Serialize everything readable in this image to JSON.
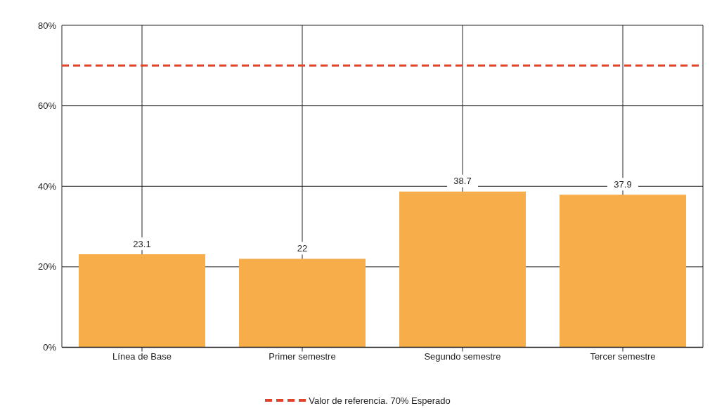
{
  "chart_data": {
    "type": "bar",
    "categories": [
      "Línea de Base",
      "Primer semestre",
      "Segundo semestre",
      "Tercer semestre"
    ],
    "values": [
      23.1,
      22,
      38.7,
      37.9
    ],
    "color": "#f7ae4a",
    "ylim": [
      0,
      80
    ],
    "yticks": [
      {
        "value": 0,
        "label": "0%"
      },
      {
        "value": 20,
        "label": "20%"
      },
      {
        "value": 40,
        "label": "40%"
      },
      {
        "value": 60,
        "label": "60%"
      },
      {
        "value": 80,
        "label": "80%"
      }
    ],
    "grid": true,
    "data_labels": true,
    "legend": "bottom",
    "ref_lines": [
      {
        "axis": "y",
        "value": 70,
        "label": "Valor de referencia. 70% Esperado",
        "color": "#e0442a",
        "line_style": "dashed"
      }
    ]
  }
}
